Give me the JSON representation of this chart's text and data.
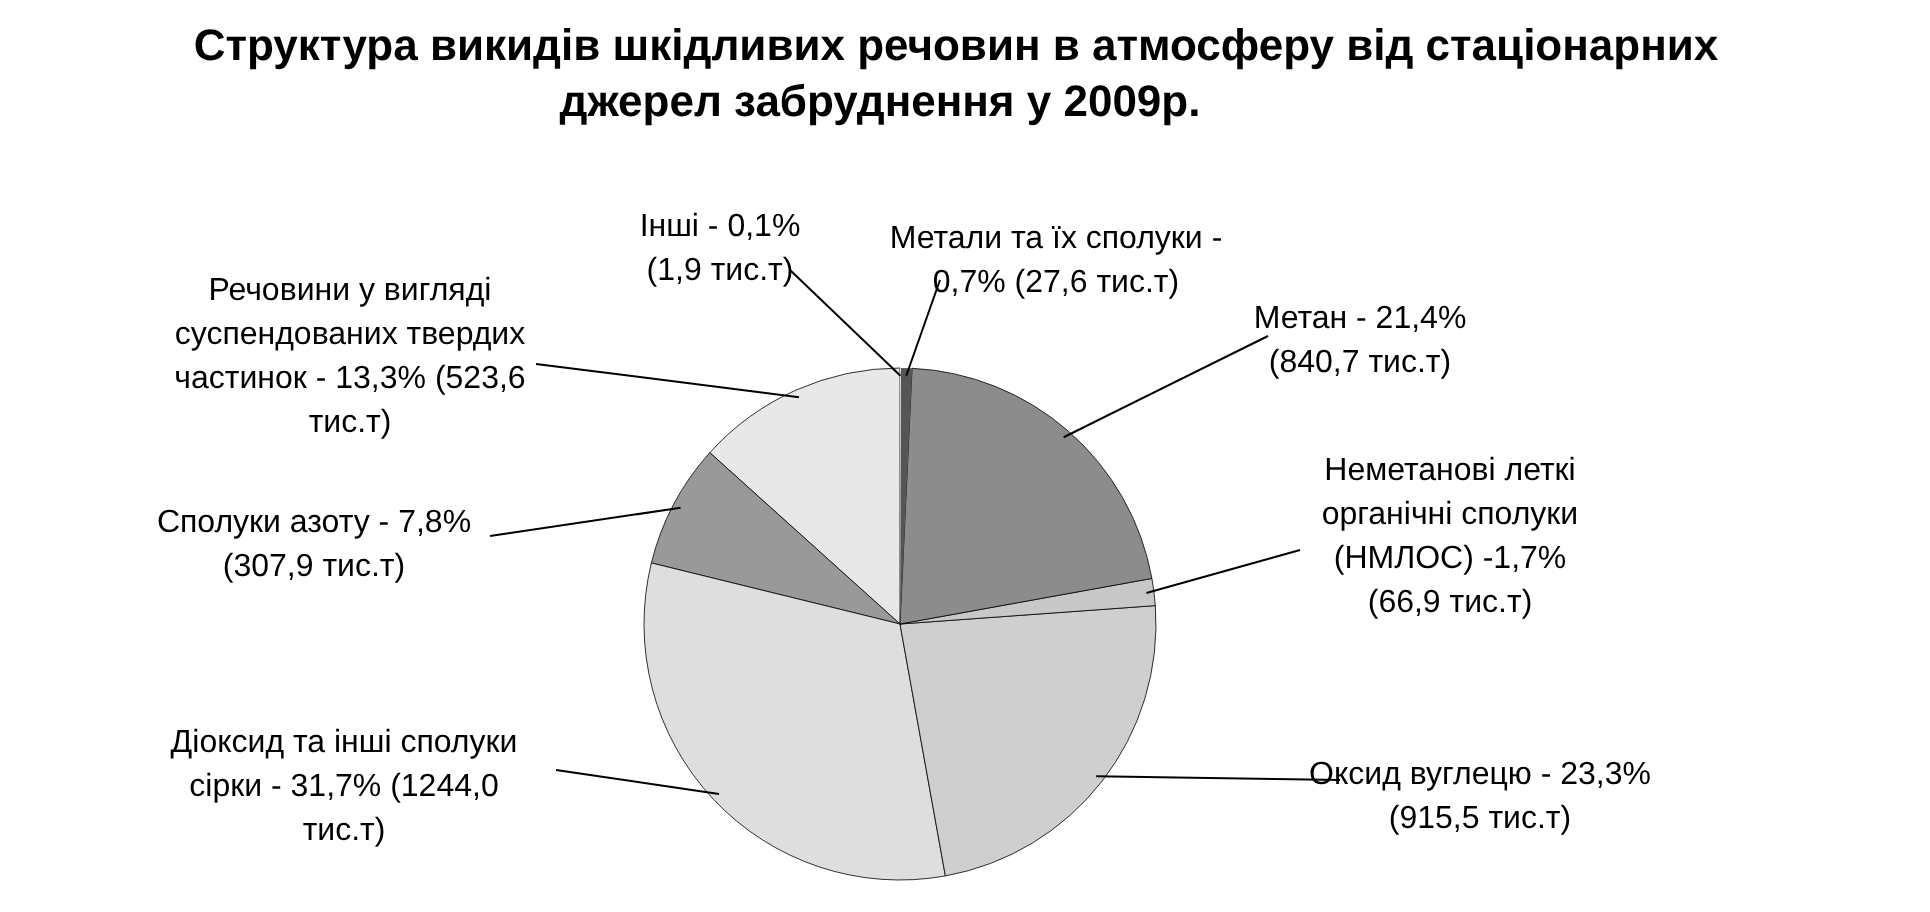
{
  "chart_data": {
    "type": "pie",
    "title": "Структура викидів шкідливих речовин в атмосферу від стаціонарних джерел забруднення у 2009р.",
    "categories": [
      "Інші",
      "Метали та їх сполуки",
      "Метан",
      "Неметанові леткі органічні сполуки (НМЛОС)",
      "Оксид вуглецю",
      "Діоксид та інші сполуки сірки",
      "Сполуки азоту",
      "Речовини у вигляді суспендованих твердих частинок"
    ],
    "values": [
      1.9,
      27.6,
      840.7,
      66.9,
      915.5,
      1244.0,
      307.9,
      523.6
    ],
    "value_labels": [
      "- 0,1% (1,9 тис.т)",
      "- 0,7% (27,6 тис.т)",
      "- 21,4% (840,7 тис.т)",
      "-1,7% (66,9 тис.т)",
      "- 23,3% (915,5 тис.т)",
      "- 31,7% (1244,0 тис.т)",
      "- 7,8% (307,9 тис.т)",
      "- 13,3% (523,6 тис.т)"
    ],
    "colors": [
      "#f4f4f4",
      "#555555",
      "#8c8c8c",
      "#c8c8c8",
      "#cfcfcf",
      "#dedede",
      "#999999",
      "#e8e8e8"
    ]
  }
}
